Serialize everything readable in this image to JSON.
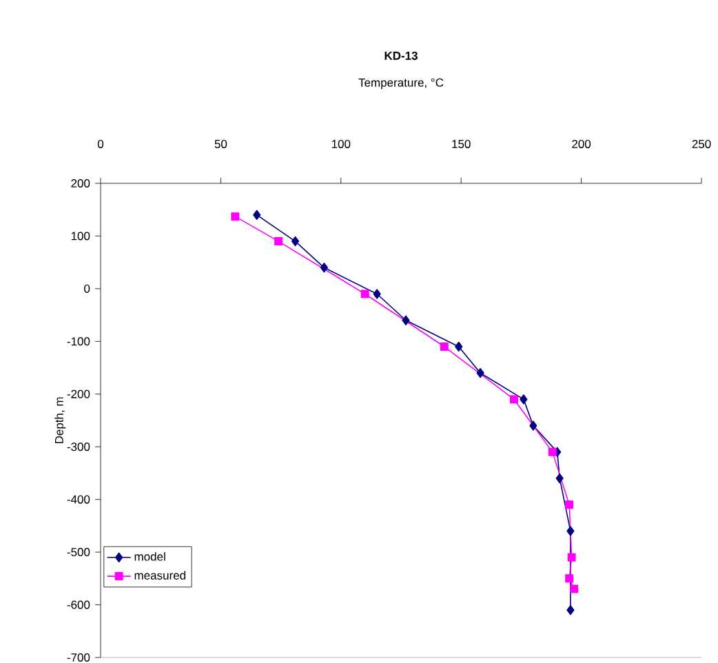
{
  "chart_data": {
    "type": "line",
    "title": "KD-13",
    "xlabel": "Temperature, °C",
    "ylabel": "Depth, m",
    "xlim": [
      0,
      250
    ],
    "xticks": [
      0,
      50,
      100,
      150,
      200,
      250
    ],
    "ylim": [
      -700,
      200
    ],
    "yticks": [
      200,
      100,
      0,
      -100,
      -200,
      -300,
      -400,
      -500,
      -600,
      -700
    ],
    "grid": false,
    "legend": "bottom left",
    "line_style": "solid",
    "series": [
      {
        "name": "model",
        "color": "#000080",
        "marker": "diamond",
        "x": [
          65,
          81,
          93,
          115,
          127,
          149,
          158,
          176,
          180,
          190,
          191,
          195.5,
          195.5
        ],
        "values": [
          140,
          90,
          40,
          -10,
          -60,
          -110,
          -160,
          -210,
          -260,
          -310,
          -360,
          -460,
          -610
        ]
      },
      {
        "name": "measured",
        "color": "#ff00ff",
        "marker": "square",
        "x": [
          56,
          74,
          110,
          143,
          172,
          188,
          195,
          196,
          195,
          197
        ],
        "values": [
          137,
          90,
          -10,
          -110,
          -210,
          -310,
          -410,
          -510,
          -550,
          -570
        ]
      }
    ]
  }
}
